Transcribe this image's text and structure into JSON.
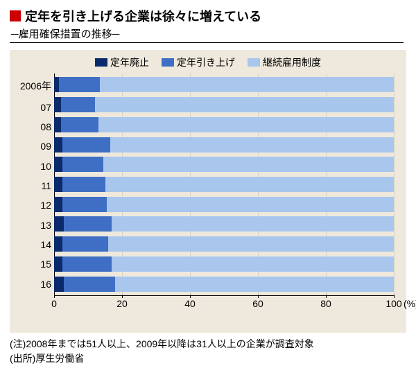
{
  "title": "定年を引き上げる企業は徐々に増えている",
  "title_square_color": "#cc0000",
  "title_color": "#000000",
  "subtitle": "─雇用確保措置の推移─",
  "chart": {
    "type": "stacked-bar-horizontal",
    "background_color": "#eee9dc",
    "grid_color": "#d8d2c2",
    "axis_color": "#000000",
    "legend": [
      {
        "label": "定年廃止",
        "color": "#0a2a6b"
      },
      {
        "label": "定年引き上げ",
        "color": "#3f6fc4"
      },
      {
        "label": "継続雇用制度",
        "color": "#a9c6ed"
      }
    ],
    "xlim": [
      0,
      100
    ],
    "xticks": [
      0,
      20,
      40,
      60,
      80,
      100
    ],
    "xunit": "(%)",
    "ylabels": [
      "2006年",
      "07",
      "08",
      "09",
      "10",
      "11",
      "12",
      "13",
      "14",
      "15",
      "16"
    ],
    "series": [
      {
        "a": 1.5,
        "b": 12.0,
        "c": 86.5
      },
      {
        "a": 2.0,
        "b": 10.0,
        "c": 88.0
      },
      {
        "a": 2.0,
        "b": 11.0,
        "c": 87.0
      },
      {
        "a": 2.5,
        "b": 14.0,
        "c": 83.5
      },
      {
        "a": 2.5,
        "b": 12.0,
        "c": 85.5
      },
      {
        "a": 2.5,
        "b": 12.5,
        "c": 85.0
      },
      {
        "a": 2.5,
        "b": 13.0,
        "c": 84.5
      },
      {
        "a": 2.8,
        "b": 14.2,
        "c": 83.0
      },
      {
        "a": 2.5,
        "b": 13.5,
        "c": 84.0
      },
      {
        "a": 2.5,
        "b": 14.5,
        "c": 83.0
      },
      {
        "a": 2.8,
        "b": 15.2,
        "c": 82.0
      }
    ]
  },
  "note1": "(注)2008年までは51人以上、2009年以降は31人以上の企業が調査対象",
  "note2": "(出所)厚生労働省"
}
